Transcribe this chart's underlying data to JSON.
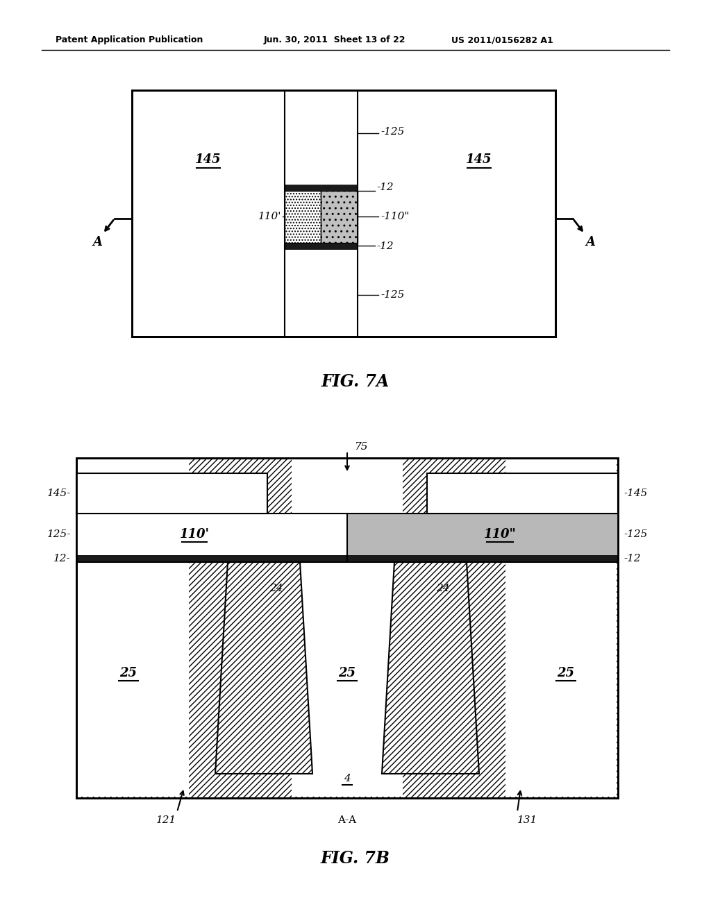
{
  "bg_color": "#ffffff",
  "header_text": "Patent Application Publication",
  "header_date": "Jun. 30, 2011  Sheet 13 of 22",
  "header_patent": "US 2011/0156282 A1",
  "fig7a_title": "FIG. 7A",
  "fig7b_title": "FIG. 7B"
}
